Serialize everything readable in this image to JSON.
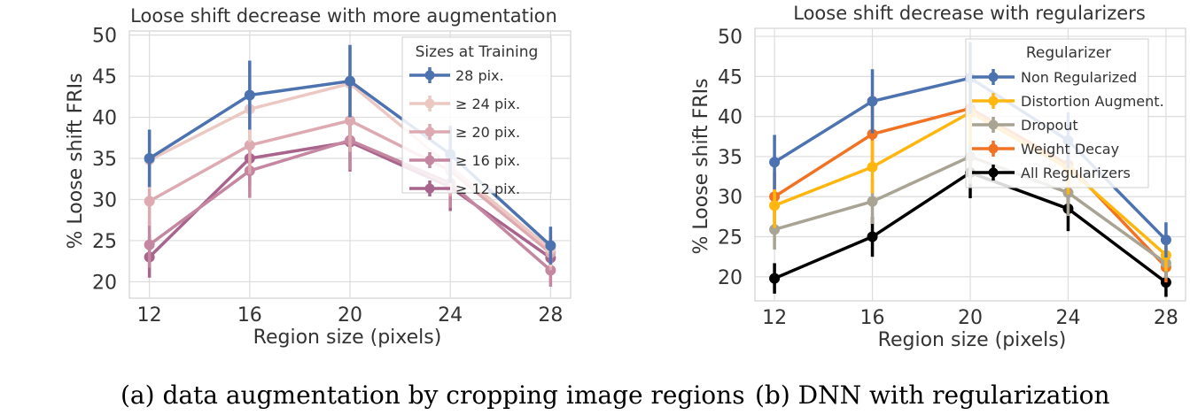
{
  "chart_data": [
    {
      "type": "line",
      "title": "Loose shift decrease with more augmentation",
      "xlabel": "Region size (pixels)",
      "ylabel": "% Loose shift FRIs",
      "x": [
        12,
        16,
        20,
        24,
        28
      ],
      "xticks": [
        "12",
        "16",
        "20",
        "24",
        "28"
      ],
      "yticks": [
        "20",
        "25",
        "30",
        "35",
        "40",
        "45",
        "50"
      ],
      "xlim": [
        11.2,
        28.8
      ],
      "ylim": [
        18,
        50.5
      ],
      "legend_title": "Sizes at Training",
      "legend_position": "top-right",
      "series": [
        {
          "name": "28 pix.",
          "color": "#4c72b0",
          "values": [
            35.0,
            42.7,
            44.4,
            35.5,
            24.4
          ],
          "err": [
            3.5,
            4.2,
            4.4,
            3.5,
            2.3
          ]
        },
        {
          "name": "≥ 24 pix.",
          "color": "#ecc8c3",
          "values": [
            34.8,
            41.0,
            44.1,
            34.0,
            24.0
          ],
          "err": [
            3.5,
            4.0,
            4.3,
            3.3,
            2.2
          ]
        },
        {
          "name": "≥ 20 pix.",
          "color": "#dcaab0",
          "values": [
            29.8,
            36.6,
            39.6,
            33.5,
            23.5
          ],
          "err": [
            3.0,
            3.5,
            3.8,
            3.1,
            2.1
          ]
        },
        {
          "name": "≥ 16 pix.",
          "color": "#c486a0",
          "values": [
            24.5,
            33.5,
            37.2,
            32.0,
            21.4
          ],
          "err": [
            2.8,
            3.3,
            3.6,
            3.0,
            2.0
          ]
        },
        {
          "name": "≥ 12 pix.",
          "color": "#a8648c",
          "values": [
            23.0,
            35.0,
            37.0,
            31.5,
            22.9
          ],
          "err": [
            2.5,
            3.4,
            3.6,
            2.9,
            2.0
          ]
        }
      ]
    },
    {
      "type": "line",
      "title": "Loose shift decrease with regularizers",
      "xlabel": "Region size (pixels)",
      "ylabel": "% Loose shift FRIs",
      "x": [
        12,
        16,
        20,
        24,
        28
      ],
      "xticks": [
        "12",
        "16",
        "20",
        "24",
        "28"
      ],
      "yticks": [
        "20",
        "25",
        "30",
        "35",
        "40",
        "45",
        "50"
      ],
      "xlim": [
        11.2,
        28.8
      ],
      "ylim": [
        17,
        51
      ],
      "legend_title": "Regularizer",
      "legend_position": "top-right",
      "series": [
        {
          "name": "Non Regularized",
          "color": "#4c72b0",
          "values": [
            34.3,
            41.9,
            44.8,
            37.0,
            24.6
          ],
          "err": [
            3.4,
            4.0,
            4.5,
            3.5,
            2.2
          ]
        },
        {
          "name": "Distortion Augment.",
          "color": "#ffb70f",
          "values": [
            28.9,
            33.7,
            40.5,
            33.5,
            22.7
          ],
          "err": [
            2.8,
            3.3,
            4.0,
            3.2,
            2.0
          ]
        },
        {
          "name": "Dropout",
          "color": "#a8a393",
          "values": [
            25.9,
            29.4,
            35.0,
            30.5,
            21.7
          ],
          "err": [
            2.5,
            2.8,
            3.4,
            2.9,
            1.9
          ]
        },
        {
          "name": "Weight Decay",
          "color": "#f07222",
          "values": [
            30.0,
            37.8,
            41.0,
            34.0,
            21.2
          ],
          "err": [
            3.0,
            3.7,
            4.0,
            3.3,
            1.9
          ]
        },
        {
          "name": "All Regularizers",
          "color": "#000000",
          "values": [
            19.8,
            25.0,
            33.0,
            28.5,
            19.3
          ],
          "err": [
            1.9,
            2.5,
            3.2,
            2.8,
            1.8
          ]
        }
      ]
    }
  ],
  "captions": [
    "(a) data augmentation by cropping image regions",
    "(b) DNN with regularization"
  ]
}
